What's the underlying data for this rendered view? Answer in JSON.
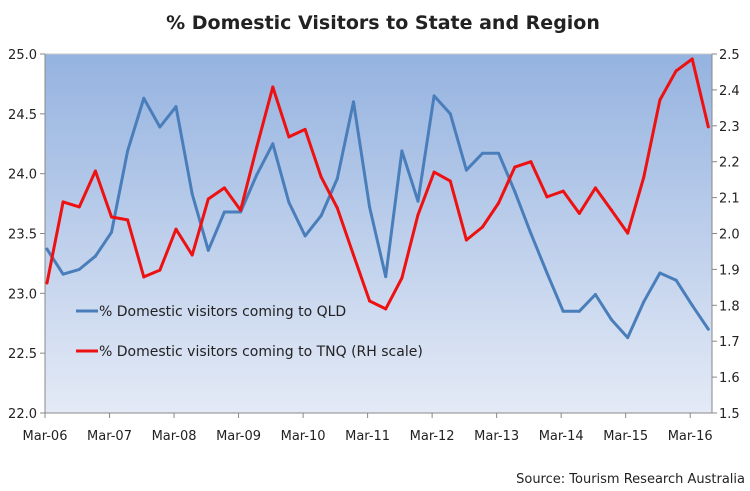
{
  "chart_data": {
    "type": "line",
    "title": "% Domestic Visitors to State and Region",
    "source": "Source: Tourism Research Australia",
    "x_tick_labels": [
      "Mar-06",
      "Mar-07",
      "Mar-08",
      "Mar-09",
      "Mar-10",
      "Mar-11",
      "Mar-12",
      "Mar-13",
      "Mar-14",
      "Mar-15",
      "Mar-16"
    ],
    "x_start": "Mar-06",
    "x_frequency": "quarterly",
    "y_left": {
      "lim": [
        22.0,
        25.0
      ],
      "ticks": [
        "22.0",
        "22.5",
        "23.0",
        "23.5",
        "24.0",
        "24.5",
        "25.0"
      ]
    },
    "y_right": {
      "lim": [
        1.5,
        2.5
      ],
      "ticks": [
        "1.5",
        "1.6",
        "1.7",
        "1.8",
        "1.9",
        "2.0",
        "2.1",
        "2.2",
        "2.3",
        "2.4",
        "2.5"
      ]
    },
    "grid": false,
    "legend_placement": "bottom-left inside",
    "series": [
      {
        "name": "% Domestic visitors coming to QLD",
        "axis": "left",
        "color": "#4a7ebb",
        "values": [
          23.37,
          23.16,
          23.2,
          23.31,
          23.51,
          24.19,
          24.63,
          24.39,
          24.56,
          23.83,
          23.36,
          23.68,
          23.68,
          23.99,
          24.25,
          23.76,
          23.48,
          23.65,
          23.96,
          24.6,
          23.72,
          23.14,
          24.19,
          23.77,
          24.65,
          24.5,
          24.03,
          24.17,
          24.17,
          23.85,
          23.5,
          23.17,
          22.85,
          22.85,
          22.99,
          22.78,
          22.63,
          22.93,
          23.17,
          23.11,
          22.9,
          22.7
        ]
      },
      {
        "name": "% Domestic visitors coming to TNQ (RH scale)",
        "axis": "right",
        "color": "#ee1111",
        "values": [
          1.862,
          2.088,
          2.074,
          2.174,
          2.046,
          2.038,
          1.879,
          1.898,
          2.012,
          1.94,
          2.096,
          2.127,
          2.065,
          2.24,
          2.408,
          2.269,
          2.29,
          2.157,
          2.071,
          1.94,
          1.812,
          1.79,
          1.876,
          2.052,
          2.171,
          2.146,
          1.982,
          2.018,
          2.085,
          2.185,
          2.2,
          2.102,
          2.118,
          2.056,
          2.127,
          2.065,
          2.001,
          2.157,
          2.372,
          2.453,
          2.486,
          2.297
        ]
      }
    ]
  }
}
